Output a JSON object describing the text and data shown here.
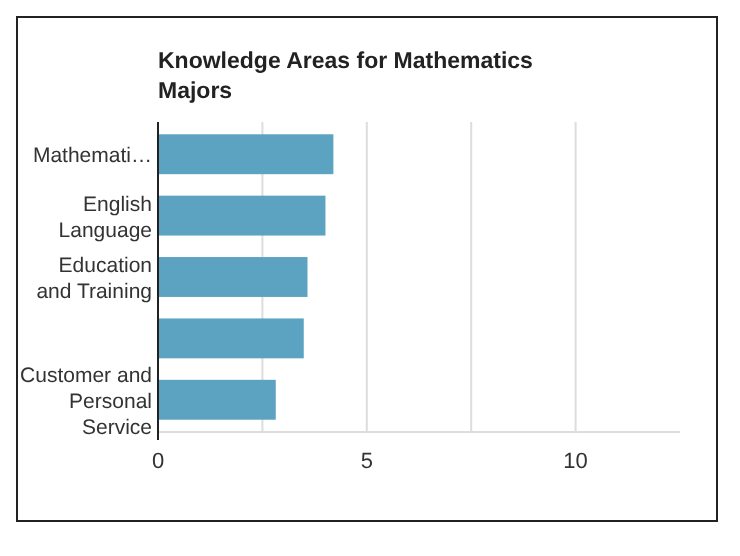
{
  "chart_data": {
    "type": "bar",
    "orientation": "horizontal",
    "title": "Knowledge Areas for Mathematics Majors",
    "categories": [
      "Mathemati…",
      "English Language",
      "Education and Training",
      null,
      "Customer and Personal Service"
    ],
    "values": [
      4.2,
      4.01,
      3.58,
      3.49,
      2.82
    ],
    "color": "#5ba3c1",
    "xlim": [
      0,
      12.5
    ],
    "xticks": [
      0,
      {
        "value": 2.5,
        "label": null
      },
      5,
      {
        "value": 7.5,
        "label": null
      },
      10
    ],
    "grid": "x"
  }
}
